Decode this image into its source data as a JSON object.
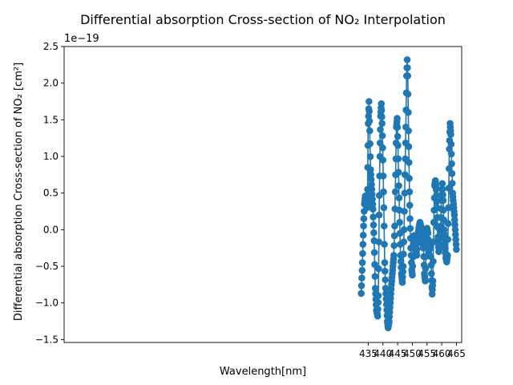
{
  "chart_data": {
    "type": "line",
    "title": "Differential absorption Cross-section of NO₂ Interpolation",
    "xlabel": "Wavelength[nm]",
    "ylabel": "Differential absorption Cross-section of NO₂ [cm²]",
    "offset_label": "1e−19",
    "xlim": [
      331.5,
      466.8
    ],
    "ylim": [
      -1.54,
      2.5
    ],
    "x_ticks": [
      435,
      440,
      445,
      450,
      455,
      460,
      465
    ],
    "y_ticks": [
      -1.5,
      -1.0,
      -0.5,
      0.0,
      0.5,
      1.0,
      1.5,
      2.0,
      2.5
    ],
    "y_tick_labels": [
      "−1.5",
      "−1.0",
      "−0.5",
      "0.0",
      "0.5",
      "1.0",
      "1.5",
      "2.0",
      "2.5"
    ],
    "grid": false,
    "legend": "none",
    "series": [
      {
        "color": "#1f77b4",
        "marker": "circle",
        "anchors": [
          [
            432.6,
            -0.87
          ],
          [
            433.0,
            -0.45
          ],
          [
            433.4,
            0.05
          ],
          [
            433.7,
            0.35
          ],
          [
            434.0,
            0.46
          ],
          [
            434.3,
            0.4
          ],
          [
            434.5,
            0.3
          ],
          [
            434.75,
            0.55
          ],
          [
            435.0,
            1.45
          ],
          [
            435.25,
            1.75
          ],
          [
            435.5,
            1.35
          ],
          [
            435.8,
            0.82
          ],
          [
            436.2,
            0.55
          ],
          [
            436.6,
            0.28
          ],
          [
            437.0,
            -0.15
          ],
          [
            437.4,
            -0.8
          ],
          [
            437.8,
            -1.1
          ],
          [
            438.2,
            -1.18
          ],
          [
            438.45,
            -0.9
          ],
          [
            438.7,
            0.2
          ],
          [
            438.95,
            1.0
          ],
          [
            439.2,
            1.55
          ],
          [
            439.45,
            1.72
          ],
          [
            439.7,
            1.45
          ],
          [
            440.0,
            0.95
          ],
          [
            440.3,
            0.3
          ],
          [
            440.6,
            -0.45
          ],
          [
            440.9,
            -0.8
          ],
          [
            441.2,
            -1.02
          ],
          [
            441.5,
            -1.25
          ],
          [
            441.75,
            -1.34
          ],
          [
            442.1,
            -1.25
          ],
          [
            442.5,
            -1.0
          ],
          [
            442.9,
            -0.75
          ],
          [
            443.3,
            -0.55
          ],
          [
            443.7,
            -0.35
          ],
          [
            444.0,
            0.05
          ],
          [
            444.3,
            0.75
          ],
          [
            444.6,
            1.4
          ],
          [
            444.85,
            1.52
          ],
          [
            445.1,
            1.15
          ],
          [
            445.4,
            0.6
          ],
          [
            445.7,
            0.1
          ],
          [
            446.0,
            -0.35
          ],
          [
            446.3,
            -0.6
          ],
          [
            446.6,
            -0.72
          ],
          [
            446.9,
            -0.5
          ],
          [
            447.2,
            0.0
          ],
          [
            447.5,
            0.75
          ],
          [
            447.8,
            1.4
          ],
          [
            448.05,
            2.1
          ],
          [
            448.25,
            2.32
          ],
          [
            448.45,
            2.1
          ],
          [
            448.7,
            1.35
          ],
          [
            448.95,
            0.7
          ],
          [
            449.2,
            0.15
          ],
          [
            449.5,
            -0.25
          ],
          [
            449.8,
            -0.55
          ],
          [
            450.0,
            -0.62
          ],
          [
            450.3,
            -0.25
          ],
          [
            450.6,
            -0.08
          ],
          [
            450.9,
            -0.15
          ],
          [
            451.2,
            -0.25
          ],
          [
            451.5,
            -0.35
          ],
          [
            451.8,
            -0.1
          ],
          [
            452.2,
            0.02
          ],
          [
            452.6,
            0.1
          ],
          [
            452.9,
            0.05
          ],
          [
            453.2,
            -0.05
          ],
          [
            453.5,
            -0.15
          ],
          [
            453.8,
            -0.25
          ],
          [
            454.1,
            -0.6
          ],
          [
            454.4,
            -0.7
          ],
          [
            454.7,
            -0.2
          ],
          [
            455.0,
            0.02
          ],
          [
            455.3,
            -0.05
          ],
          [
            455.6,
            -0.3
          ],
          [
            455.9,
            -0.2
          ],
          [
            456.2,
            -0.25
          ],
          [
            456.5,
            -0.6
          ],
          [
            456.75,
            -0.88
          ],
          [
            457.0,
            -0.7
          ],
          [
            457.3,
            0.1
          ],
          [
            457.6,
            0.6
          ],
          [
            457.85,
            0.67
          ],
          [
            458.1,
            0.55
          ],
          [
            458.4,
            0.3
          ],
          [
            458.7,
            -0.1
          ],
          [
            459.0,
            -0.3
          ],
          [
            459.3,
            -0.2
          ],
          [
            459.6,
            0.05
          ],
          [
            459.9,
            0.4
          ],
          [
            460.2,
            0.63
          ],
          [
            460.5,
            0.4
          ],
          [
            460.8,
            0.0
          ],
          [
            461.1,
            -0.2
          ],
          [
            461.4,
            -0.38
          ],
          [
            461.7,
            -0.44
          ],
          [
            462.0,
            -0.35
          ],
          [
            462.3,
            0.3
          ],
          [
            462.6,
            1.1
          ],
          [
            462.85,
            1.45
          ],
          [
            463.1,
            1.3
          ],
          [
            463.4,
            0.9
          ],
          [
            463.7,
            0.5
          ],
          [
            464.0,
            0.35
          ],
          [
            464.3,
            0.2
          ],
          [
            464.6,
            0.0
          ],
          [
            465.0,
            -0.27
          ]
        ]
      }
    ]
  }
}
